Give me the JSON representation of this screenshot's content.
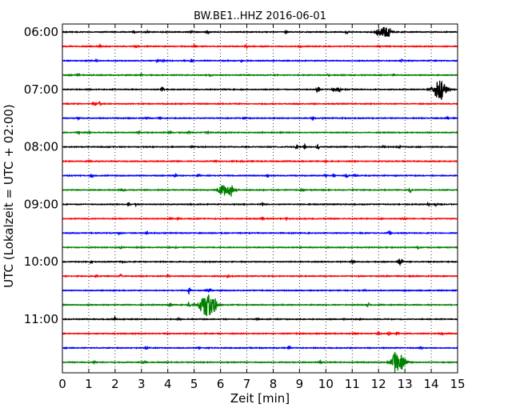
{
  "chart_data": {
    "type": "line",
    "title": "BW.BE1..HHZ 2016-06-01",
    "xlabel": "Zeit  [min]",
    "ylabel": "UTC (Lokalzeit = UTC + 02:00)",
    "xlim": [
      0,
      15
    ],
    "x_ticks": [
      "0",
      "1",
      "2",
      "3",
      "4",
      "5",
      "6",
      "7",
      "8",
      "9",
      "10",
      "11",
      "12",
      "13",
      "14",
      "15"
    ],
    "y_ticks": [
      "06:00",
      "07:00",
      "08:00",
      "09:00",
      "10:00",
      "11:00"
    ],
    "grid": "vertical dotted",
    "row_colors": [
      "#000000",
      "#ff0000",
      "#0000ff",
      "#008000"
    ],
    "rows": [
      {
        "start": "06:00",
        "events": [
          [
            2.7,
            0.3
          ],
          [
            3.2,
            0.2
          ],
          [
            4.9,
            0.2
          ],
          [
            5.5,
            0.3
          ],
          [
            8.5,
            0.3
          ],
          [
            10.8,
            0.2
          ],
          [
            12.0,
            0.4
          ],
          [
            12.2,
            0.9
          ],
          [
            12.4,
            0.5
          ]
        ]
      },
      {
        "start": "06:15",
        "events": [
          [
            1.4,
            0.3
          ],
          [
            2.8,
            0.2
          ],
          [
            5.0,
            0.2
          ],
          [
            7.0,
            0.2
          ],
          [
            9.0,
            0.2
          ],
          [
            12.0,
            0.2
          ]
        ]
      },
      {
        "start": "06:30",
        "events": [
          [
            1.3,
            0.2
          ],
          [
            3.6,
            0.2
          ],
          [
            3.8,
            0.2
          ],
          [
            4.9,
            0.3
          ],
          [
            6.8,
            0.15
          ],
          [
            12.9,
            0.15
          ]
        ]
      },
      {
        "start": "06:45",
        "events": [
          [
            0.6,
            0.3
          ],
          [
            3.0,
            0.25
          ],
          [
            5.6,
            0.15
          ],
          [
            10.1,
            0.15
          ],
          [
            12.6,
            0.15
          ]
        ]
      },
      {
        "start": "07:00",
        "events": [
          [
            3.8,
            0.5
          ],
          [
            9.7,
            0.8
          ],
          [
            10.3,
            0.6
          ],
          [
            10.5,
            0.5
          ],
          [
            14.2,
            0.7
          ],
          [
            14.3,
            1.8
          ],
          [
            14.4,
            0.6
          ]
        ]
      },
      {
        "start": "07:15",
        "events": [
          [
            1.2,
            0.5
          ],
          [
            1.4,
            0.35
          ]
        ]
      },
      {
        "start": "07:30",
        "events": [
          [
            0.6,
            0.2
          ],
          [
            3.2,
            0.2
          ],
          [
            3.7,
            0.2
          ],
          [
            6.9,
            0.15
          ],
          [
            9.5,
            0.3
          ],
          [
            14.6,
            0.2
          ]
        ]
      },
      {
        "start": "07:45",
        "events": [
          [
            0.6,
            0.25
          ],
          [
            1.0,
            0.2
          ],
          [
            2.9,
            0.2
          ],
          [
            4.1,
            0.3
          ],
          [
            4.8,
            0.3
          ],
          [
            5.5,
            0.3
          ],
          [
            8.3,
            0.15
          ]
        ]
      },
      {
        "start": "08:00",
        "events": [
          [
            4.9,
            0.2
          ],
          [
            8.9,
            0.5
          ],
          [
            9.2,
            0.4
          ],
          [
            9.7,
            0.45
          ],
          [
            12.2,
            0.15
          ],
          [
            12.8,
            0.2
          ]
        ]
      },
      {
        "start": "08:15",
        "events": [
          [
            1.0,
            0.2
          ],
          [
            5.8,
            0.15
          ],
          [
            6.8,
            0.15
          ],
          [
            10.0,
            0.15
          ]
        ]
      },
      {
        "start": "08:30",
        "events": [
          [
            1.1,
            0.35
          ],
          [
            4.3,
            0.25
          ],
          [
            5.2,
            0.2
          ],
          [
            7.8,
            0.2
          ],
          [
            10.0,
            0.3
          ],
          [
            10.3,
            0.3
          ],
          [
            10.8,
            0.3
          ],
          [
            11.1,
            0.3
          ]
        ]
      },
      {
        "start": "08:45",
        "events": [
          [
            2.2,
            0.2
          ],
          [
            2.3,
            0.15
          ],
          [
            6.0,
            0.6
          ],
          [
            6.2,
            1.0
          ],
          [
            6.4,
            0.8
          ],
          [
            9.1,
            0.25
          ],
          [
            13.2,
            0.45
          ]
        ]
      },
      {
        "start": "09:00",
        "events": [
          [
            2.5,
            0.3
          ],
          [
            2.8,
            0.3
          ],
          [
            7.6,
            0.3
          ],
          [
            13.9,
            0.25
          ],
          [
            14.2,
            0.2
          ]
        ]
      },
      {
        "start": "09:15",
        "events": [
          [
            4.1,
            0.15
          ],
          [
            4.4,
            0.15
          ],
          [
            7.6,
            0.3
          ],
          [
            8.5,
            0.15
          ],
          [
            13.0,
            0.15
          ]
        ]
      },
      {
        "start": "09:30",
        "events": [
          [
            2.2,
            0.3
          ],
          [
            3.2,
            0.4
          ],
          [
            12.4,
            0.3
          ]
        ]
      },
      {
        "start": "09:45",
        "events": [
          [
            2.2,
            0.15
          ],
          [
            4.3,
            0.15
          ],
          [
            13.5,
            0.15
          ]
        ]
      },
      {
        "start": "10:00",
        "events": [
          [
            1.1,
            0.3
          ],
          [
            2.3,
            0.15
          ],
          [
            11.0,
            0.35
          ],
          [
            12.8,
            0.7
          ],
          [
            12.9,
            0.4
          ]
        ]
      },
      {
        "start": "10:15",
        "events": [
          [
            1.3,
            0.3
          ],
          [
            2.2,
            0.3
          ],
          [
            4.0,
            0.15
          ],
          [
            6.3,
            0.15
          ],
          [
            12.3,
            0.15
          ]
        ]
      },
      {
        "start": "10:30",
        "events": [
          [
            4.8,
            0.55
          ],
          [
            5.5,
            0.25
          ],
          [
            5.6,
            0.4
          ],
          [
            11.5,
            0.15
          ]
        ]
      },
      {
        "start": "10:45",
        "events": [
          [
            4.1,
            0.35
          ],
          [
            4.8,
            0.4
          ],
          [
            5.4,
            0.9
          ],
          [
            5.55,
            1.6
          ],
          [
            5.8,
            0.7
          ],
          [
            11.6,
            0.35
          ]
        ]
      },
      {
        "start": "11:00",
        "events": [
          [
            2.0,
            0.4
          ],
          [
            4.4,
            0.15
          ],
          [
            7.4,
            0.15
          ],
          [
            11.3,
            0.15
          ]
        ]
      },
      {
        "start": "11:15",
        "events": [
          [
            11.1,
            0.2
          ],
          [
            12.0,
            0.3
          ],
          [
            12.4,
            0.4
          ],
          [
            12.7,
            0.3
          ],
          [
            14.4,
            0.2
          ]
        ]
      },
      {
        "start": "11:30",
        "events": [
          [
            3.2,
            0.15
          ],
          [
            5.2,
            0.3
          ],
          [
            8.6,
            0.3
          ],
          [
            13.6,
            0.2
          ]
        ]
      },
      {
        "start": "11:45",
        "events": [
          [
            1.2,
            0.15
          ],
          [
            3.1,
            0.2
          ],
          [
            9.8,
            0.3
          ],
          [
            12.6,
            0.8
          ],
          [
            12.75,
            1.6
          ],
          [
            12.9,
            0.4
          ]
        ]
      }
    ]
  }
}
